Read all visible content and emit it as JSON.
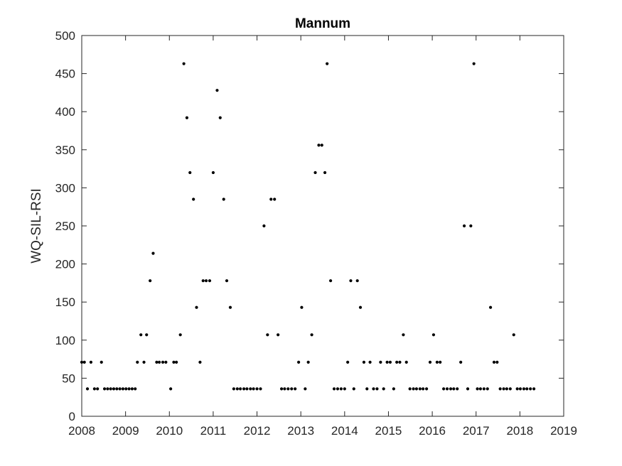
{
  "chart_data": {
    "type": "scatter",
    "title": "Mannum",
    "xlabel": "",
    "ylabel": "WQ-SIL-RSI",
    "xlim": [
      2008,
      2019
    ],
    "ylim": [
      0,
      500
    ],
    "x_ticks": [
      "2008",
      "2009",
      "2010",
      "2011",
      "2012",
      "2013",
      "2014",
      "2015",
      "2016",
      "2017",
      "2018",
      "2019"
    ],
    "y_ticks": [
      "0",
      "50",
      "100",
      "150",
      "200",
      "250",
      "300",
      "350",
      "400",
      "450",
      "500"
    ],
    "grid": false,
    "legend": "none",
    "colors": {
      "marker": "#000000",
      "axes": "#262626",
      "background": "#ffffff"
    },
    "series": [
      {
        "points": [
          [
            2008.0,
            71
          ],
          [
            2008.06,
            71
          ],
          [
            2008.13,
            36
          ],
          [
            2008.21,
            71
          ],
          [
            2008.29,
            36
          ],
          [
            2008.36,
            36
          ],
          [
            2008.45,
            71
          ],
          [
            2008.52,
            36
          ],
          [
            2008.59,
            36
          ],
          [
            2008.66,
            36
          ],
          [
            2008.73,
            36
          ],
          [
            2008.8,
            36
          ],
          [
            2008.87,
            36
          ],
          [
            2008.94,
            36
          ],
          [
            2009.01,
            36
          ],
          [
            2009.08,
            36
          ],
          [
            2009.15,
            36
          ],
          [
            2009.22,
            36
          ],
          [
            2009.27,
            71
          ],
          [
            2009.35,
            107
          ],
          [
            2009.42,
            71
          ],
          [
            2009.48,
            107
          ],
          [
            2009.56,
            178
          ],
          [
            2009.63,
            214
          ],
          [
            2009.71,
            71
          ],
          [
            2009.77,
            71
          ],
          [
            2009.85,
            71
          ],
          [
            2009.92,
            71
          ],
          [
            2010.03,
            36
          ],
          [
            2010.1,
            71
          ],
          [
            2010.16,
            71
          ],
          [
            2010.25,
            107
          ],
          [
            2010.33,
            463
          ],
          [
            2010.4,
            392
          ],
          [
            2010.47,
            320
          ],
          [
            2010.55,
            285
          ],
          [
            2010.62,
            143
          ],
          [
            2010.7,
            71
          ],
          [
            2010.77,
            178
          ],
          [
            2010.84,
            178
          ],
          [
            2010.92,
            178
          ],
          [
            2011.0,
            320
          ],
          [
            2011.09,
            428
          ],
          [
            2011.16,
            392
          ],
          [
            2011.24,
            285
          ],
          [
            2011.31,
            178
          ],
          [
            2011.39,
            143
          ],
          [
            2011.47,
            36
          ],
          [
            2011.55,
            36
          ],
          [
            2011.62,
            36
          ],
          [
            2011.7,
            36
          ],
          [
            2011.77,
            36
          ],
          [
            2011.85,
            36
          ],
          [
            2011.92,
            36
          ],
          [
            2012.0,
            36
          ],
          [
            2012.08,
            36
          ],
          [
            2012.16,
            250
          ],
          [
            2012.24,
            107
          ],
          [
            2012.32,
            285
          ],
          [
            2012.4,
            285
          ],
          [
            2012.48,
            107
          ],
          [
            2012.56,
            36
          ],
          [
            2012.63,
            36
          ],
          [
            2012.71,
            36
          ],
          [
            2012.79,
            36
          ],
          [
            2012.87,
            36
          ],
          [
            2012.95,
            71
          ],
          [
            2013.02,
            143
          ],
          [
            2013.1,
            36
          ],
          [
            2013.17,
            71
          ],
          [
            2013.25,
            107
          ],
          [
            2013.33,
            320
          ],
          [
            2013.41,
            356
          ],
          [
            2013.48,
            356
          ],
          [
            2013.55,
            320
          ],
          [
            2013.6,
            463
          ],
          [
            2013.68,
            178
          ],
          [
            2013.76,
            36
          ],
          [
            2013.84,
            36
          ],
          [
            2013.92,
            36
          ],
          [
            2014.0,
            36
          ],
          [
            2014.07,
            71
          ],
          [
            2014.14,
            178
          ],
          [
            2014.21,
            36
          ],
          [
            2014.29,
            178
          ],
          [
            2014.36,
            143
          ],
          [
            2014.44,
            71
          ],
          [
            2014.51,
            36
          ],
          [
            2014.58,
            71
          ],
          [
            2014.66,
            36
          ],
          [
            2014.74,
            36
          ],
          [
            2014.82,
            71
          ],
          [
            2014.89,
            36
          ],
          [
            2014.97,
            71
          ],
          [
            2015.04,
            71
          ],
          [
            2015.12,
            36
          ],
          [
            2015.19,
            71
          ],
          [
            2015.26,
            71
          ],
          [
            2015.34,
            107
          ],
          [
            2015.41,
            71
          ],
          [
            2015.49,
            36
          ],
          [
            2015.57,
            36
          ],
          [
            2015.64,
            36
          ],
          [
            2015.72,
            36
          ],
          [
            2015.79,
            36
          ],
          [
            2015.87,
            36
          ],
          [
            2015.95,
            71
          ],
          [
            2016.03,
            107
          ],
          [
            2016.11,
            71
          ],
          [
            2016.18,
            71
          ],
          [
            2016.26,
            36
          ],
          [
            2016.34,
            36
          ],
          [
            2016.42,
            36
          ],
          [
            2016.49,
            36
          ],
          [
            2016.57,
            36
          ],
          [
            2016.65,
            71
          ],
          [
            2016.73,
            250
          ],
          [
            2016.81,
            36
          ],
          [
            2016.88,
            250
          ],
          [
            2016.95,
            463
          ],
          [
            2017.03,
            36
          ],
          [
            2017.1,
            36
          ],
          [
            2017.18,
            36
          ],
          [
            2017.26,
            36
          ],
          [
            2017.33,
            143
          ],
          [
            2017.41,
            71
          ],
          [
            2017.48,
            71
          ],
          [
            2017.55,
            36
          ],
          [
            2017.63,
            36
          ],
          [
            2017.7,
            36
          ],
          [
            2017.78,
            36
          ],
          [
            2017.86,
            107
          ],
          [
            2017.94,
            36
          ],
          [
            2018.01,
            36
          ],
          [
            2018.09,
            36
          ],
          [
            2018.16,
            36
          ],
          [
            2018.24,
            36
          ],
          [
            2018.32,
            36
          ]
        ]
      }
    ]
  }
}
